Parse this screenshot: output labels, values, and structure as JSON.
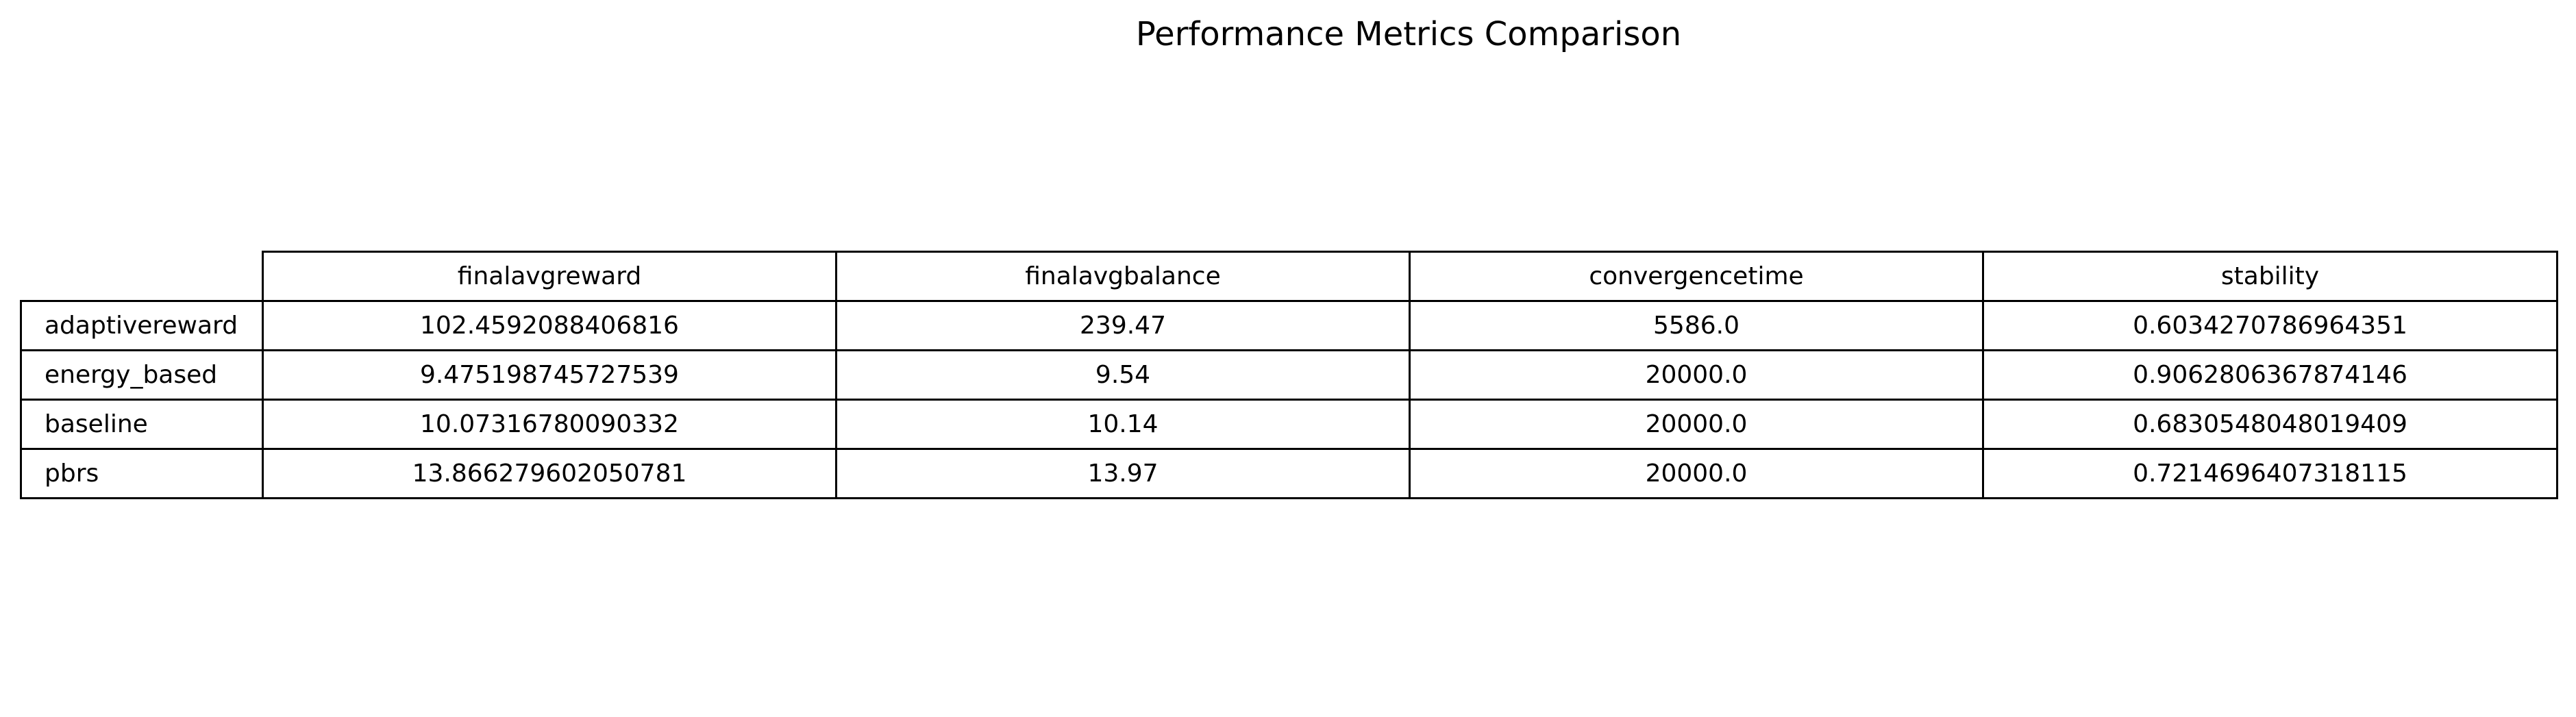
{
  "chart_data": {
    "type": "table",
    "title": "Performance Metrics Comparison",
    "columns": [
      "finalavgreward",
      "finalavgbalance",
      "convergencetime",
      "stability"
    ],
    "rows": [
      {
        "label": "adaptivereward",
        "values": [
          "102.4592088406816",
          "239.47",
          "5586.0",
          "0.6034270786964351"
        ]
      },
      {
        "label": "energy_based",
        "values": [
          "9.475198745727539",
          "9.54",
          "20000.0",
          "0.9062806367874146"
        ]
      },
      {
        "label": "baseline",
        "values": [
          "10.07316780090332",
          "10.14",
          "20000.0",
          "0.6830548048019409"
        ]
      },
      {
        "label": "pbrs",
        "values": [
          "13.866279602050781",
          "13.97",
          "20000.0",
          "0.7214696407318115"
        ]
      }
    ]
  }
}
